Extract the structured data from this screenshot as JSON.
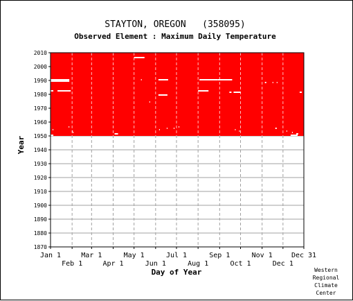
{
  "chart_data": {
    "type": "heatmap",
    "title": "STAYTON, OREGON   (358095)",
    "subtitle": "Observed Element : Maximum Daily Temperature",
    "xlabel": "Day of Year",
    "ylabel": "Year",
    "x_ticks_top": [
      "Jan 1",
      "Mar 1",
      "May 1",
      "Jul 1",
      "Sep 1",
      "Nov 1",
      "Dec 31"
    ],
    "x_ticks_top_days": [
      1,
      60,
      121,
      182,
      244,
      305,
      365
    ],
    "x_ticks_bottom": [
      "Feb 1",
      "Apr 1",
      "Jun 1",
      "Aug 1",
      "Oct 1",
      "Dec 1"
    ],
    "x_ticks_bottom_days": [
      32,
      91,
      152,
      213,
      274,
      335
    ],
    "y_ticks": [
      "1870",
      "1880",
      "1890",
      "1900",
      "1910",
      "1920",
      "1930",
      "1940",
      "1950",
      "1960",
      "1970",
      "1980",
      "1990",
      "2000",
      "2010"
    ],
    "xlim": [
      1,
      365
    ],
    "ylim": [
      1870,
      2010
    ],
    "observed_years": [
      1950,
      2010
    ],
    "observed_color": "#ff0000",
    "missing_color": "#ffffff",
    "missing_segments": [
      {
        "year": 2006,
        "start_day": 121,
        "end_day": 136
      },
      {
        "year": 1990,
        "start_day": 1,
        "end_day": 28
      },
      {
        "year": 1989,
        "start_day": 1,
        "end_day": 28
      },
      {
        "year": 1990,
        "start_day": 156,
        "end_day": 170
      },
      {
        "year": 1990,
        "start_day": 215,
        "end_day": 241
      },
      {
        "year": 1990,
        "start_day": 241,
        "end_day": 262
      },
      {
        "year": 1982,
        "start_day": 1,
        "end_day": 5
      },
      {
        "year": 1982,
        "start_day": 11,
        "end_day": 30
      },
      {
        "year": 1982,
        "start_day": 213,
        "end_day": 228
      },
      {
        "year": 1981,
        "start_day": 258,
        "end_day": 261
      },
      {
        "year": 1981,
        "start_day": 264,
        "end_day": 274
      },
      {
        "year": 1981,
        "start_day": 359,
        "end_day": 362
      },
      {
        "year": 1979,
        "start_day": 156,
        "end_day": 169
      },
      {
        "year": 1988,
        "start_day": 309,
        "end_day": 311
      },
      {
        "year": 1988,
        "start_day": 320,
        "end_day": 321
      },
      {
        "year": 1988,
        "start_day": 326,
        "end_day": 327
      },
      {
        "year": 1990,
        "start_day": 131,
        "end_day": 132
      },
      {
        "year": 1974,
        "start_day": 143,
        "end_day": 144
      },
      {
        "year": 1956,
        "start_day": 27,
        "end_day": 28
      },
      {
        "year": 1954,
        "start_day": 4,
        "end_day": 5
      },
      {
        "year": 1953,
        "start_day": 32,
        "end_day": 33
      },
      {
        "year": 1952,
        "start_day": 33,
        "end_day": 34
      },
      {
        "year": 1954,
        "start_day": 157,
        "end_day": 158
      },
      {
        "year": 1955,
        "start_day": 168,
        "end_day": 169
      },
      {
        "year": 1955,
        "start_day": 178,
        "end_day": 179
      },
      {
        "year": 1956,
        "start_day": 185,
        "end_day": 186
      },
      {
        "year": 1954,
        "start_day": 266,
        "end_day": 267
      },
      {
        "year": 1953,
        "start_day": 272,
        "end_day": 273
      },
      {
        "year": 1955,
        "start_day": 324,
        "end_day": 326
      },
      {
        "year": 1953,
        "start_day": 340,
        "end_day": 341
      },
      {
        "year": 1952,
        "start_day": 348,
        "end_day": 349
      },
      {
        "year": 1951,
        "start_day": 93,
        "end_day": 98
      },
      {
        "year": 1950,
        "start_day": 1,
        "end_day": 5
      },
      {
        "year": 1950,
        "start_day": 346,
        "end_day": 356
      },
      {
        "year": 1951,
        "start_day": 354,
        "end_day": 357
      }
    ]
  },
  "credit": [
    "Western",
    "Regional",
    "Climate",
    "Center"
  ]
}
